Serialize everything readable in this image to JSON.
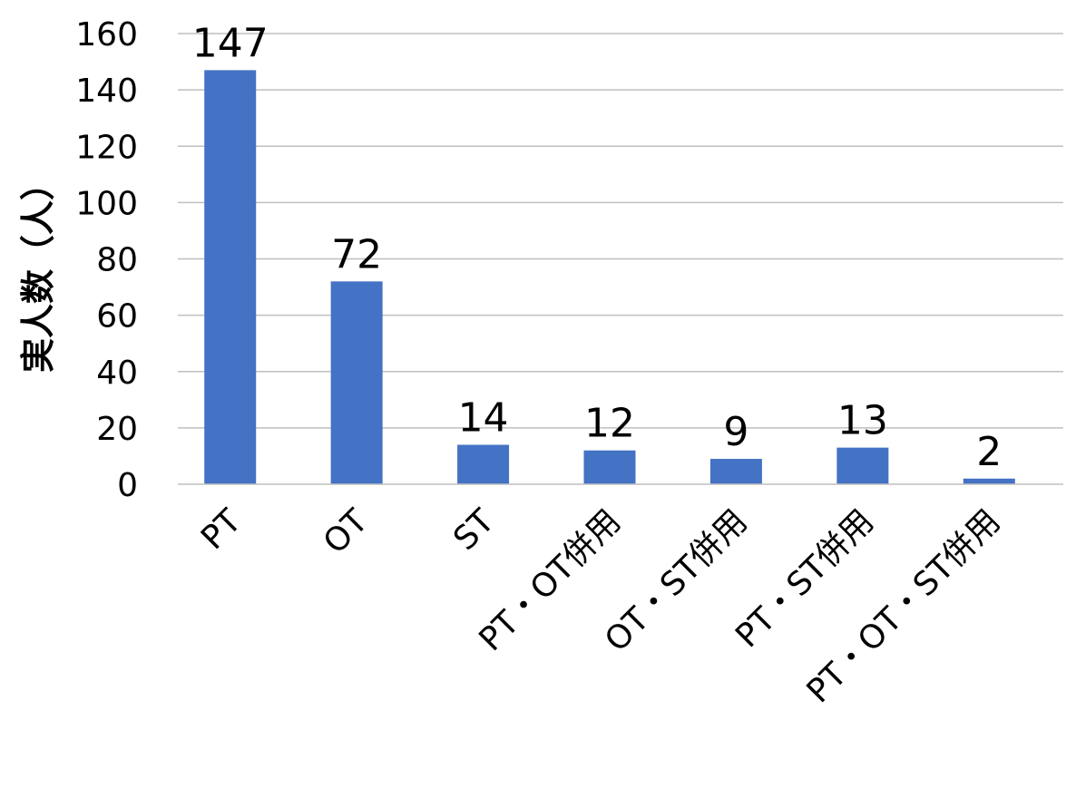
{
  "chart_data": {
    "type": "bar",
    "title": "",
    "xlabel": "",
    "ylabel": "実人数（人）",
    "ylim": [
      0,
      160
    ],
    "yticks": [
      0,
      20,
      40,
      60,
      80,
      100,
      120,
      140,
      160
    ],
    "grid": true,
    "categories": [
      "PT",
      "OT",
      "ST",
      "PT・OT併用",
      "OT・ST併用",
      "PT・ST併用",
      "PT・OT・ST併用"
    ],
    "values": [
      147,
      72,
      14,
      12,
      9,
      13,
      2
    ],
    "data_labels": [
      "147",
      "72",
      "14",
      "12",
      "9",
      "13",
      "2"
    ],
    "bar_color": "#4472C4",
    "grid_color": "#BFBFBF",
    "axis_color": "#BFBFBF"
  }
}
